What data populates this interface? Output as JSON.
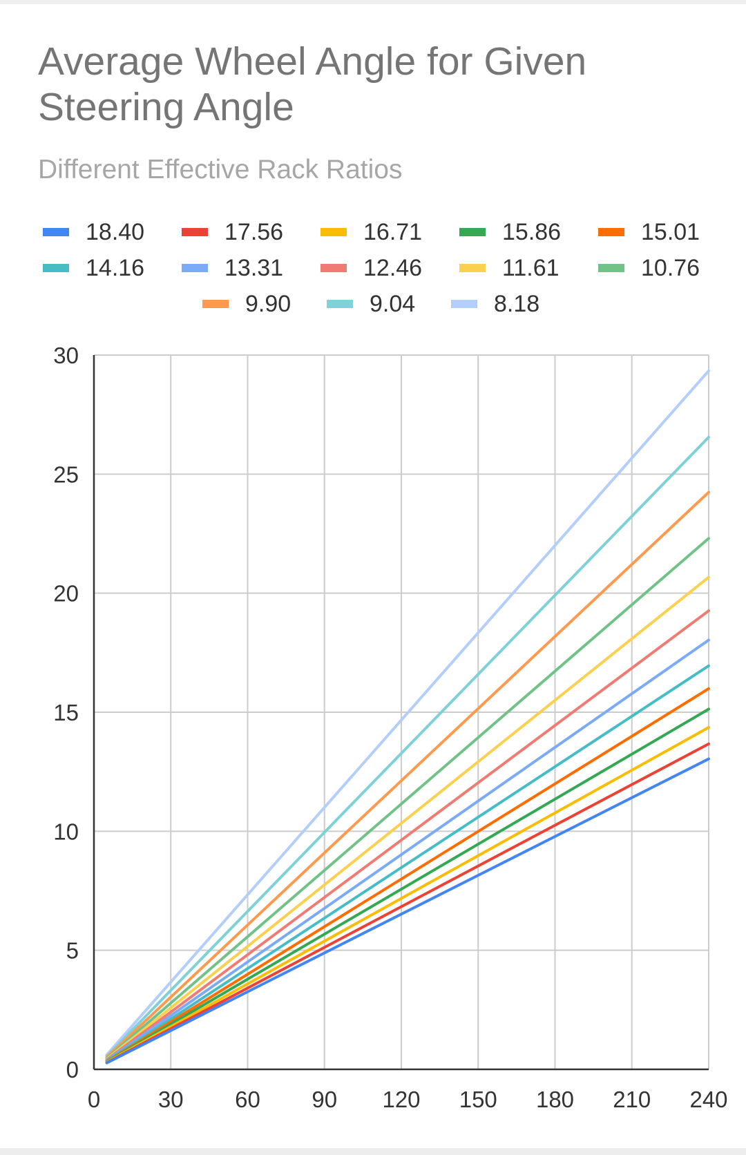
{
  "chart_data": {
    "type": "line",
    "title": "Average Wheel Angle for Given Steering Angle",
    "subtitle": "Different Effective Rack Ratios",
    "xlabel": "",
    "ylabel": "",
    "xlim": [
      0,
      240
    ],
    "ylim": [
      0,
      30
    ],
    "x_ticks": [
      "0",
      "30",
      "60",
      "90",
      "120",
      "150",
      "180",
      "210",
      "240"
    ],
    "y_ticks": [
      "0",
      "5",
      "10",
      "15",
      "20",
      "25",
      "30"
    ],
    "grid": true,
    "legend_position": "top",
    "x": [
      5,
      240
    ],
    "series": [
      {
        "name": "18.40",
        "color": "#4285f4",
        "values": [
          0.27,
          13.04
        ]
      },
      {
        "name": "17.56",
        "color": "#ea4335",
        "values": [
          0.28,
          13.67
        ]
      },
      {
        "name": "16.71",
        "color": "#fbbc04",
        "values": [
          0.3,
          14.36
        ]
      },
      {
        "name": "15.86",
        "color": "#34a853",
        "values": [
          0.32,
          15.13
        ]
      },
      {
        "name": "15.01",
        "color": "#ff6d01",
        "values": [
          0.33,
          15.99
        ]
      },
      {
        "name": "14.16",
        "color": "#46bdc6",
        "values": [
          0.35,
          16.95
        ]
      },
      {
        "name": "13.31",
        "color": "#7baaf7",
        "values": [
          0.38,
          18.03
        ]
      },
      {
        "name": "12.46",
        "color": "#f07b72",
        "values": [
          0.4,
          19.26
        ]
      },
      {
        "name": "11.61",
        "color": "#fcd04f",
        "values": [
          0.43,
          20.67
        ]
      },
      {
        "name": "10.76",
        "color": "#71c287",
        "values": [
          0.46,
          22.3
        ]
      },
      {
        "name": "9.90",
        "color": "#ff994d",
        "values": [
          0.51,
          24.24
        ]
      },
      {
        "name": "9.04",
        "color": "#7ed1d7",
        "values": [
          0.55,
          26.55
        ]
      },
      {
        "name": "8.18",
        "color": "#b3cefb",
        "values": [
          0.61,
          29.34
        ]
      }
    ]
  }
}
